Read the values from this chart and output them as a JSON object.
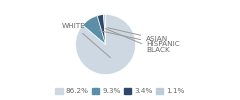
{
  "labels": [
    "WHITE",
    "HISPANIC",
    "BLACK",
    "ASIAN"
  ],
  "values": [
    86.2,
    9.3,
    3.4,
    1.1
  ],
  "colors": [
    "#cdd8e3",
    "#5b8fa8",
    "#2d4a6b",
    "#b8cdd8"
  ],
  "legend_labels": [
    "86.2%",
    "9.3%",
    "3.4%",
    "1.1%"
  ],
  "legend_colors": [
    "#cdd8e3",
    "#5b8fa8",
    "#2d4a6b",
    "#b8cdd8"
  ],
  "label_fontsize": 5.2,
  "legend_fontsize": 5.2,
  "background_color": "#ffffff",
  "text_color": "#666666",
  "line_color": "#999999"
}
